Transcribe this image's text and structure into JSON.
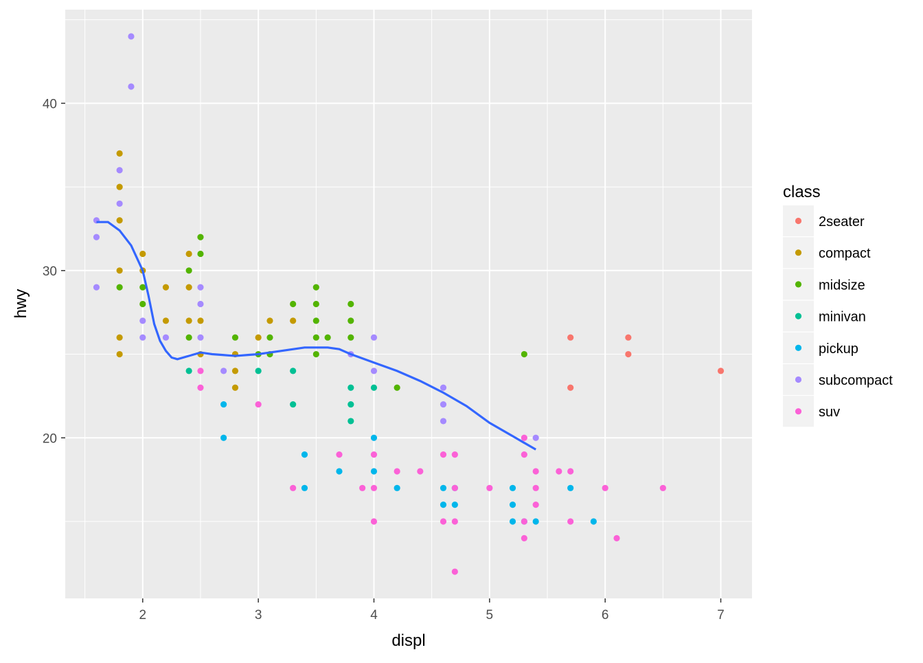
{
  "chart_data": {
    "type": "scatter",
    "xlabel": "displ",
    "ylabel": "hwy",
    "xlim": [
      1.33,
      7.27
    ],
    "ylim": [
      10.4,
      45.6
    ],
    "x_ticks": [
      2,
      3,
      4,
      5,
      6,
      7
    ],
    "y_ticks": [
      20,
      30,
      40
    ],
    "grid": true,
    "legend": {
      "title": "class",
      "position": "right"
    },
    "series": [
      {
        "name": "2seater",
        "color": "#F8766D",
        "points": [
          [
            5.7,
            26
          ],
          [
            5.7,
            23
          ],
          [
            6.2,
            26
          ],
          [
            6.2,
            25
          ],
          [
            7.0,
            24
          ]
        ]
      },
      {
        "name": "compact",
        "color": "#C49A00",
        "points": [
          [
            1.8,
            37
          ],
          [
            1.8,
            35
          ],
          [
            1.8,
            33
          ],
          [
            1.8,
            30
          ],
          [
            1.8,
            26
          ],
          [
            1.8,
            25
          ],
          [
            2.0,
            31
          ],
          [
            2.0,
            30
          ],
          [
            2.2,
            29
          ],
          [
            2.2,
            27
          ],
          [
            2.4,
            31
          ],
          [
            2.4,
            29
          ],
          [
            2.4,
            27
          ],
          [
            2.5,
            27
          ],
          [
            2.5,
            25
          ],
          [
            2.8,
            25
          ],
          [
            2.8,
            24
          ],
          [
            2.8,
            23
          ],
          [
            3.0,
            26
          ],
          [
            3.1,
            27
          ],
          [
            3.3,
            27
          ]
        ]
      },
      {
        "name": "midsize",
        "color": "#53B400",
        "points": [
          [
            1.8,
            29
          ],
          [
            2.0,
            29
          ],
          [
            2.0,
            28
          ],
          [
            2.4,
            30
          ],
          [
            2.4,
            26
          ],
          [
            2.5,
            32
          ],
          [
            2.5,
            31
          ],
          [
            2.8,
            26
          ],
          [
            3.0,
            25
          ],
          [
            3.1,
            26
          ],
          [
            3.1,
            25
          ],
          [
            3.3,
            28
          ],
          [
            3.5,
            29
          ],
          [
            3.5,
            28
          ],
          [
            3.5,
            27
          ],
          [
            3.5,
            26
          ],
          [
            3.5,
            25
          ],
          [
            3.6,
            26
          ],
          [
            3.8,
            28
          ],
          [
            3.8,
            27
          ],
          [
            3.8,
            26
          ],
          [
            4.2,
            23
          ],
          [
            5.3,
            25
          ]
        ]
      },
      {
        "name": "minivan",
        "color": "#00C094",
        "points": [
          [
            2.4,
            24
          ],
          [
            3.0,
            24
          ],
          [
            3.3,
            24
          ],
          [
            3.3,
            22
          ],
          [
            3.8,
            23
          ],
          [
            3.8,
            22
          ],
          [
            3.8,
            21
          ],
          [
            4.0,
            23
          ]
        ]
      },
      {
        "name": "pickup",
        "color": "#00B6EB",
        "points": [
          [
            2.7,
            22
          ],
          [
            2.7,
            20
          ],
          [
            3.4,
            19
          ],
          [
            3.4,
            17
          ],
          [
            3.7,
            18
          ],
          [
            4.0,
            20
          ],
          [
            4.0,
            18
          ],
          [
            4.2,
            17
          ],
          [
            4.6,
            17
          ],
          [
            4.6,
            16
          ],
          [
            4.7,
            17
          ],
          [
            4.7,
            16
          ],
          [
            5.2,
            17
          ],
          [
            5.2,
            16
          ],
          [
            5.2,
            15
          ],
          [
            5.3,
            15
          ],
          [
            5.4,
            15
          ],
          [
            5.7,
            17
          ],
          [
            5.9,
            15
          ]
        ]
      },
      {
        "name": "subcompact",
        "color": "#A58AFF",
        "points": [
          [
            1.6,
            33
          ],
          [
            1.6,
            32
          ],
          [
            1.6,
            29
          ],
          [
            1.8,
            36
          ],
          [
            1.8,
            34
          ],
          [
            1.9,
            44
          ],
          [
            1.9,
            41
          ],
          [
            2.0,
            27
          ],
          [
            2.0,
            26
          ],
          [
            2.2,
            26
          ],
          [
            2.5,
            29
          ],
          [
            2.5,
            28
          ],
          [
            2.5,
            26
          ],
          [
            2.7,
            24
          ],
          [
            3.8,
            25
          ],
          [
            4.0,
            26
          ],
          [
            4.0,
            24
          ],
          [
            4.6,
            23
          ],
          [
            4.6,
            22
          ],
          [
            4.6,
            21
          ],
          [
            5.4,
            20
          ]
        ]
      },
      {
        "name": "suv",
        "color": "#FB61D7",
        "points": [
          [
            2.5,
            24
          ],
          [
            2.5,
            23
          ],
          [
            3.0,
            22
          ],
          [
            3.3,
            17
          ],
          [
            3.7,
            19
          ],
          [
            3.9,
            17
          ],
          [
            4.0,
            19
          ],
          [
            4.0,
            17
          ],
          [
            4.0,
            15
          ],
          [
            4.2,
            18
          ],
          [
            4.4,
            18
          ],
          [
            4.6,
            19
          ],
          [
            4.6,
            15
          ],
          [
            4.7,
            19
          ],
          [
            4.7,
            17
          ],
          [
            4.7,
            15
          ],
          [
            4.7,
            12
          ],
          [
            5.0,
            17
          ],
          [
            5.3,
            20
          ],
          [
            5.3,
            19
          ],
          [
            5.3,
            15
          ],
          [
            5.3,
            14
          ],
          [
            5.4,
            18
          ],
          [
            5.4,
            17
          ],
          [
            5.4,
            16
          ],
          [
            5.6,
            18
          ],
          [
            5.7,
            18
          ],
          [
            5.7,
            15
          ],
          [
            6.0,
            17
          ],
          [
            6.1,
            14
          ],
          [
            6.5,
            17
          ]
        ]
      }
    ],
    "smooth": {
      "color": "#3366FF",
      "x": [
        1.6,
        1.7,
        1.8,
        1.9,
        2.0,
        2.05,
        2.1,
        2.15,
        2.2,
        2.25,
        2.3,
        2.4,
        2.5,
        2.6,
        2.8,
        3.0,
        3.2,
        3.4,
        3.6,
        3.7,
        3.8,
        4.0,
        4.2,
        4.4,
        4.6,
        4.8,
        5.0,
        5.2,
        5.4
      ],
      "y": [
        32.9,
        32.9,
        32.4,
        31.5,
        30.0,
        28.5,
        26.8,
        25.8,
        25.2,
        24.8,
        24.7,
        24.9,
        25.1,
        25.0,
        24.9,
        25.0,
        25.2,
        25.4,
        25.4,
        25.3,
        25.0,
        24.5,
        24.0,
        23.4,
        22.7,
        21.9,
        20.9,
        20.1,
        19.3
      ]
    }
  }
}
